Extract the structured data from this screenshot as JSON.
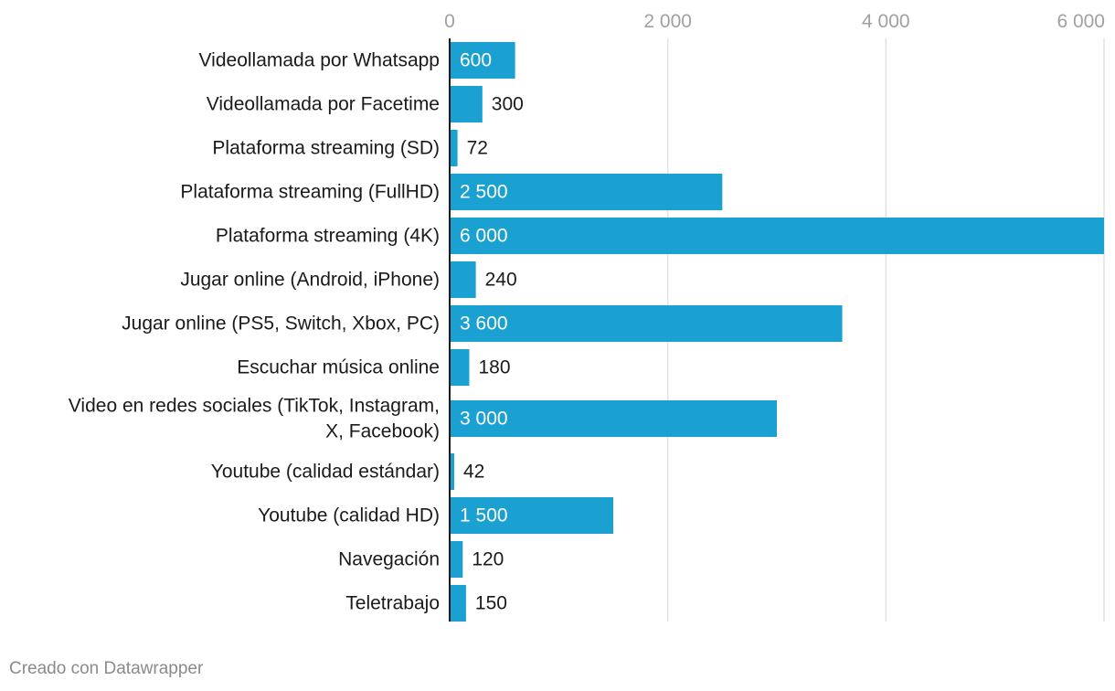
{
  "chart_data": {
    "type": "bar",
    "orientation": "horizontal",
    "categories": [
      [
        "Videollamada por Whatsapp"
      ],
      [
        "Videollamada por Facetime"
      ],
      [
        "Plataforma streaming (SD)"
      ],
      [
        "Plataforma streaming (FullHD)"
      ],
      [
        "Plataforma streaming (4K)"
      ],
      [
        "Jugar online (Android, iPhone)"
      ],
      [
        "Jugar online (PS5, Switch, Xbox, PC)"
      ],
      [
        "Escuchar música online"
      ],
      [
        "Video en redes sociales (TikTok, Instagram,",
        "X, Facebook)"
      ],
      [
        "Youtube (calidad estándar)"
      ],
      [
        "Youtube (calidad HD)"
      ],
      [
        "Navegación"
      ],
      [
        "Teletrabajo"
      ]
    ],
    "values": [
      600,
      300,
      72,
      2500,
      6000,
      240,
      3600,
      180,
      3000,
      42,
      1500,
      120,
      150
    ],
    "value_labels": [
      "600",
      "300",
      "72",
      "2 500",
      "6 000",
      "240",
      "3 600",
      "180",
      "3 000",
      "42",
      "1 500",
      "120",
      "150"
    ],
    "xlim": [
      0,
      6000
    ],
    "ticks": [
      0,
      2000,
      4000,
      6000
    ],
    "tick_labels": [
      "0",
      "2 000",
      "4 000",
      "6 000"
    ],
    "grid": true,
    "title": "",
    "xlabel": "",
    "ylabel": ""
  },
  "colors": {
    "bar": "#1ba1d1",
    "grid": "#e2e2e2",
    "axis": "#1a1a1a"
  },
  "footer": {
    "credit": "Creado con Datawrapper"
  }
}
